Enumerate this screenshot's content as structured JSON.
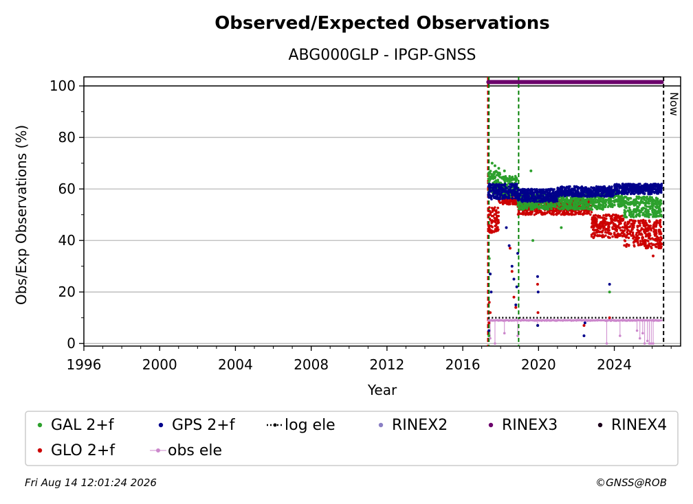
{
  "chart_data": {
    "type": "scatter",
    "title": "Observed/Expected Observations",
    "subtitle": "ABG000GLP - IPGP-GNSS",
    "xlabel": "Year",
    "ylabel": "Obs/Exp Observations (%)",
    "xlim": [
      1996,
      2027.5
    ],
    "ylim": [
      -1,
      103.5
    ],
    "x_ticks": [
      1996,
      2000,
      2004,
      2008,
      2012,
      2016,
      2020,
      2024
    ],
    "y_ticks": [
      0,
      20,
      40,
      60,
      80,
      100
    ],
    "grid": "horizontal",
    "legend_position": "bottom",
    "now_label": "Now",
    "now_x": 2026.6,
    "vlines": [
      {
        "x": 2017.32,
        "color": "#cc0000",
        "style": "dashed"
      },
      {
        "x": 2017.38,
        "color": "#008000",
        "style": "dashed"
      },
      {
        "x": 2018.95,
        "color": "#008000",
        "style": "dashed"
      },
      {
        "x": 2026.6,
        "color": "#000000",
        "style": "dashed"
      }
    ],
    "hline": {
      "y": 100,
      "color": "#000000"
    },
    "series": [
      {
        "name": "GAL 2+f",
        "color": "#2ca02c",
        "marker": "dot",
        "bands": [
          {
            "x": [
              2017.35,
              2018.0
            ],
            "y": [
              58,
              67
            ]
          },
          {
            "x": [
              2018.0,
              2018.9
            ],
            "y": [
              57,
              65
            ]
          },
          {
            "x": [
              2018.9,
              2021.5
            ],
            "y": [
              52,
              58
            ]
          },
          {
            "x": [
              2021.5,
              2023.5
            ],
            "y": [
              52,
              58
            ]
          },
          {
            "x": [
              2023.5,
              2024.5
            ],
            "y": [
              53,
              59
            ]
          },
          {
            "x": [
              2024.5,
              2026.5
            ],
            "y": [
              49,
              57
            ]
          }
        ],
        "outliers": [
          [
            2017.55,
            70
          ],
          [
            2017.7,
            69
          ],
          [
            2017.9,
            68
          ],
          [
            2018.2,
            67
          ],
          [
            2019.6,
            67
          ],
          [
            2019.7,
            40
          ],
          [
            2017.4,
            33
          ],
          [
            2017.45,
            27
          ],
          [
            2019.95,
            7
          ],
          [
            2023.75,
            20
          ],
          [
            2021.2,
            45
          ],
          [
            2017.38,
            3
          ]
        ]
      },
      {
        "name": "GPS 2+f",
        "color": "#00008b",
        "marker": "dot",
        "bands": [
          {
            "x": [
              2017.35,
              2018.9
            ],
            "y": [
              56,
              62
            ]
          },
          {
            "x": [
              2018.9,
              2021.0
            ],
            "y": [
              55,
              60
            ]
          },
          {
            "x": [
              2021.0,
              2024.0
            ],
            "y": [
              57,
              61
            ]
          },
          {
            "x": [
              2024.0,
              2026.5
            ],
            "y": [
              58,
              62
            ]
          }
        ],
        "outliers": [
          [
            2017.45,
            27
          ],
          [
            2017.5,
            20
          ],
          [
            2018.3,
            45
          ],
          [
            2018.45,
            38
          ],
          [
            2018.6,
            30
          ],
          [
            2018.7,
            25
          ],
          [
            2018.8,
            15
          ],
          [
            2018.85,
            22
          ],
          [
            2018.9,
            35
          ],
          [
            2019.95,
            26
          ],
          [
            2019.98,
            20
          ],
          [
            2019.96,
            7
          ],
          [
            2022.4,
            3
          ],
          [
            2022.45,
            8
          ],
          [
            2023.75,
            23
          ],
          [
            2017.38,
            5
          ]
        ]
      },
      {
        "name": "GLO 2+f",
        "color": "#cc0000",
        "marker": "dot",
        "bands": [
          {
            "x": [
              2017.35,
              2017.9
            ],
            "y": [
              43,
              53
            ]
          },
          {
            "x": [
              2017.9,
              2018.9
            ],
            "y": [
              54,
              59
            ]
          },
          {
            "x": [
              2018.9,
              2022.8
            ],
            "y": [
              50,
              56
            ]
          },
          {
            "x": [
              2022.8,
              2024.5
            ],
            "y": [
              41,
              50
            ]
          },
          {
            "x": [
              2024.5,
              2026.5
            ],
            "y": [
              37,
              48
            ]
          }
        ],
        "outliers": [
          [
            2017.4,
            16
          ],
          [
            2017.45,
            12
          ],
          [
            2018.5,
            37
          ],
          [
            2018.6,
            28
          ],
          [
            2018.7,
            18
          ],
          [
            2018.8,
            14
          ],
          [
            2019.95,
            23
          ],
          [
            2019.97,
            12
          ],
          [
            2022.4,
            7
          ],
          [
            2023.75,
            10
          ],
          [
            2026.05,
            34
          ],
          [
            2017.38,
            8
          ]
        ]
      },
      {
        "name": "log ele",
        "color": "#000000",
        "marker": "dotted-line",
        "points": [
          [
            2017.35,
            10
          ],
          [
            2026.5,
            10
          ]
        ]
      },
      {
        "name": "RINEX2",
        "color": "#8a7fc4",
        "marker": "dot",
        "points": []
      },
      {
        "name": "RINEX3",
        "color": "#6b006b",
        "marker": "line",
        "points": [
          [
            2017.35,
            101.5
          ],
          [
            2026.5,
            101.5
          ]
        ]
      },
      {
        "name": "RINEX4",
        "color": "#1a001a",
        "marker": "dot",
        "points": []
      },
      {
        "name": "obs ele",
        "color": "#cc88cc",
        "marker": "dot-line",
        "base": 9,
        "dips": [
          [
            2017.45,
            2
          ],
          [
            2017.7,
            0
          ],
          [
            2018.2,
            4
          ],
          [
            2018.9,
            3
          ],
          [
            2019.95,
            7
          ],
          [
            2022.45,
            8
          ],
          [
            2023.6,
            0
          ],
          [
            2024.3,
            3
          ],
          [
            2025.2,
            5
          ],
          [
            2025.35,
            2
          ],
          [
            2025.5,
            4
          ],
          [
            2025.6,
            0
          ],
          [
            2025.75,
            1
          ],
          [
            2025.85,
            0
          ],
          [
            2025.95,
            0
          ],
          [
            2026.05,
            0
          ]
        ]
      }
    ]
  },
  "footer": {
    "timestamp": "Fri Aug 14 12:01:24 2026",
    "credit": "©GNSS@ROB"
  }
}
